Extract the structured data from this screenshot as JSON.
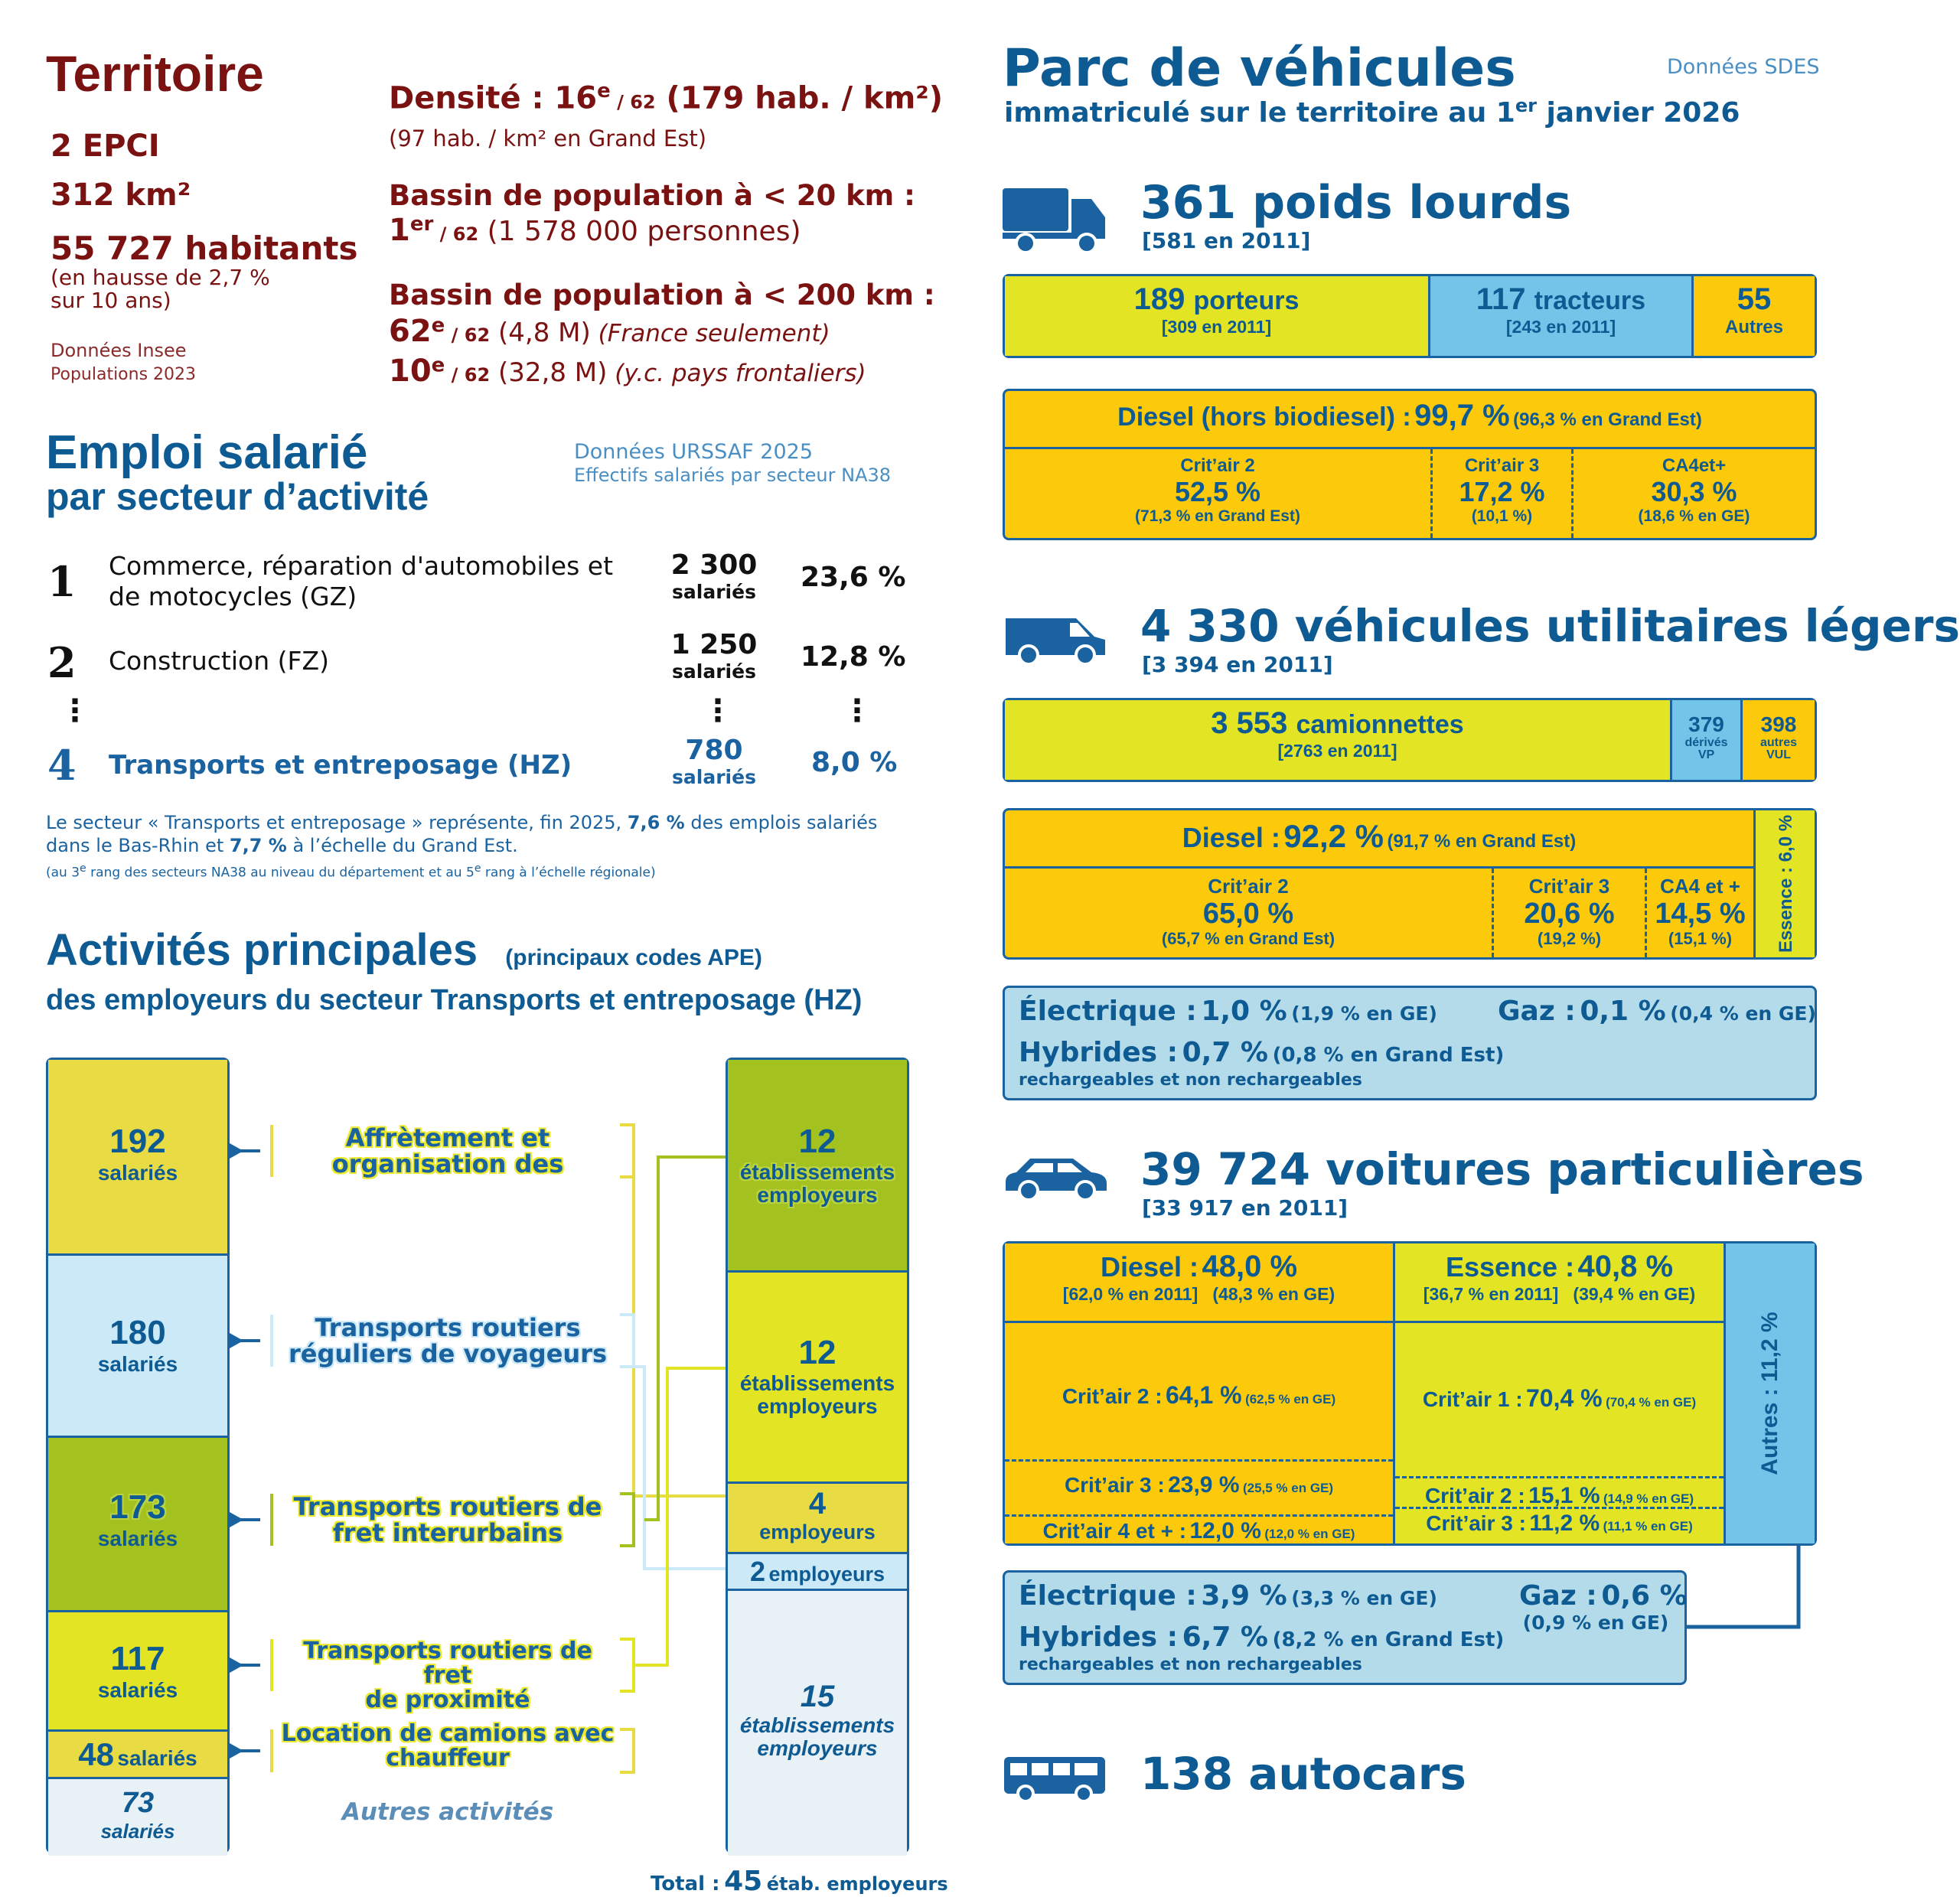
{
  "territoire": {
    "title": "Territoire",
    "epci": "2 EPCI",
    "surface": "312 km²",
    "habitants": "55 727 habitants",
    "hausse_1": "(en hausse de 2,7 %",
    "hausse_2": "sur 10 ans)",
    "source_1": "Données Insee",
    "source_2": "Populations 2023",
    "densite_label": "Densité : 16",
    "densite_sup": "e",
    "densite_rank": " / 62",
    "densite_val": " (179 hab. / km²)",
    "densite_ge": "(97 hab. / km² en Grand Est)",
    "bassin20_title": "Bassin de population à < 20 km :",
    "bassin20_rank": "1",
    "bassin20_sup": "er",
    "bassin20_of": " / 62",
    "bassin20_val": " (1 578 000 personnes)",
    "bassin200_title": "Bassin de population à < 200 km :",
    "bassin200_r1": "62",
    "bassin200_r1_sup": "e",
    "bassin200_r1_of": " / 62",
    "bassin200_r1_val": " (4,8 M)",
    "bassin200_r1_note": " (France seulement)",
    "bassin200_r2": "10",
    "bassin200_r2_sup": "e",
    "bassin200_r2_of": " / 62",
    "bassin200_r2_val": " (32,8 M)",
    "bassin200_r2_note": " (y.c. pays frontaliers)"
  },
  "emploi": {
    "title": "Emploi salarié",
    "subtitle": "par secteur d’activité",
    "source_1": "Données URSSAF 2025",
    "source_2": "Effectifs salariés par secteur NA38",
    "rows": [
      {
        "rank": "1",
        "label_1": "Commerce, réparation d'automobiles et",
        "label_2": "de motocycles (GZ)",
        "count": "2 300",
        "unit": "salariés",
        "pct": "23,6 %"
      },
      {
        "rank": "2",
        "label_1": "Construction (FZ)",
        "label_2": "",
        "count": "1 250",
        "unit": "salariés",
        "pct": "12,8 %"
      },
      {
        "rank": "4",
        "label_1": "Transports et entreposage (HZ)",
        "label_2": "",
        "count": "780",
        "unit": "salariés",
        "pct": "8,0 %"
      }
    ],
    "dots": "⋮",
    "note_a": "Le secteur « Transports et entreposage » représente, fin 2025, ",
    "note_b": "7,6 %",
    "note_c": " des emplois salariés",
    "note_d": "dans le Bas-Rhin et ",
    "note_e": "7,7 %",
    "note_f": " à l’échelle du Grand Est.",
    "note_small_1": "(au 3",
    "note_small_sup1": "e",
    "note_small_2": " rang des secteurs NA38 au niveau du département et au 5",
    "note_small_sup2": "e",
    "note_small_3": " rang à l’échelle régionale)"
  },
  "activites": {
    "title": "Activités principales",
    "title_note": "(principaux codes APE)",
    "subtitle": "des employeurs du secteur Transports et entreposage (HZ)",
    "left": [
      {
        "n": "192",
        "u": "salariés",
        "color": "#e8db44"
      },
      {
        "n": "180",
        "u": "salariés",
        "color": "#cbe9f7"
      },
      {
        "n": "173",
        "u": "salariés",
        "color": "#a4c21f"
      },
      {
        "n": "117",
        "u": "salariés",
        "color": "#e2e424"
      },
      {
        "n": "48",
        "u": "salariés",
        "color": "#e8db44"
      },
      {
        "n": "73",
        "u": "salariés",
        "color": "#e8f1f6"
      }
    ],
    "labels": [
      {
        "l1": "Affrètement et",
        "l2": "organisation des"
      },
      {
        "l1": "Transports routiers",
        "l2": "réguliers de voyageurs"
      },
      {
        "l1": "Transports routiers de",
        "l2": "fret interurbains"
      },
      {
        "l1": "Transports routiers de fret",
        "l2": "de proximité"
      },
      {
        "l1": "Location de camions avec",
        "l2": "chauffeur"
      },
      {
        "l1": "Autres activités",
        "l2": ""
      }
    ],
    "right": [
      {
        "n": "12",
        "u1": "établissements",
        "u2": "employeurs",
        "color": "#a4c21f"
      },
      {
        "n": "12",
        "u1": "établissements",
        "u2": "employeurs",
        "color": "#e2e424"
      },
      {
        "n": "4",
        "u1": "employeurs",
        "u2": "",
        "color": "#e8db44"
      },
      {
        "n": "2",
        "u1": "employeurs",
        "u2": "",
        "color": "#cbe9f7"
      },
      {
        "n": "15",
        "u1": "établissements",
        "u2": "employeurs",
        "color": "#e8f1f6"
      }
    ],
    "total_label": "Total :",
    "total_n": "45",
    "total_u": "étab. employeurs"
  },
  "parc": {
    "title": "Parc de véhicules",
    "subtitle_a": "immatriculé sur le territoire au 1",
    "subtitle_sup": "er",
    "subtitle_b": " janvier 2026",
    "source": "Données SDES",
    "pl": {
      "title": "361 poids lourds",
      "ref": "[581 en 2011]",
      "porteurs_n": "189",
      "porteurs_l": "porteurs",
      "porteurs_ref": "[309 en 2011]",
      "tracteurs_n": "117",
      "tracteurs_l": "tracteurs",
      "tracteurs_ref": "[243 en 2011]",
      "autres_n": "55",
      "autres_l": "Autres",
      "diesel_a": "Diesel (hors biodiesel) :",
      "diesel_b": "99,7 %",
      "diesel_c": "(96,3 % en Grand Est)",
      "c2_l": "Crit’air 2",
      "c2_v": "52,5 %",
      "c2_r": "(71,3 % en Grand Est)",
      "c3_l": "Crit’air 3",
      "c3_v": "17,2 %",
      "c3_r": "(10,1 %)",
      "c4_l": "CA4et+",
      "c4_v": "30,3 %",
      "c4_r": "(18,6 % en GE)"
    },
    "vul": {
      "title": "4 330 véhicules utilitaires légers",
      "ref": "[3 394 en 2011]",
      "cam_n": "3 553",
      "cam_l": "camionnettes",
      "cam_ref": "[2763 en 2011]",
      "vp_n": "379",
      "vp_l1": "dérivés",
      "vp_l2": "VP",
      "vul_n": "398",
      "vul_l1": "autres",
      "vul_l2": "VUL",
      "diesel_a": "Diesel :",
      "diesel_b": "92,2 %",
      "diesel_c": "(91,7 % en Grand Est)",
      "essence": "Essence : 6,0 %",
      "c2_l": "Crit’air 2",
      "c2_v": "65,0 %",
      "c2_r": "(65,7 % en Grand Est)",
      "c3_l": "Crit’air 3",
      "c3_v": "20,6 %",
      "c3_r": "(19,2 %)",
      "c4_l": "CA4 et +",
      "c4_v": "14,5 %",
      "c4_r": "(15,1 %)",
      "elec_a": "Électrique :",
      "elec_b": "1,0 %",
      "elec_c": "(1,9 % en GE)",
      "gaz_a": "Gaz :",
      "gaz_b": "0,1 %",
      "gaz_c": "(0,4 % en GE)",
      "hyb_a": "Hybrides :",
      "hyb_b": "0,7 %",
      "hyb_c": "(0,8 % en Grand Est)",
      "hyb_d": "rechargeables et non rechargeables"
    },
    "vp": {
      "title": "39 724 voitures particulières",
      "ref": "[33 917 en 2011]",
      "diesel_a": "Diesel :",
      "diesel_b": "48,0 %",
      "diesel_r": "[62,0 % en 2011]   (48,3 % en GE)",
      "ess_a": "Essence :",
      "ess_b": "40,8 %",
      "ess_r": "[36,7 % en 2011]   (39,4 % en GE)",
      "autres": "Autres : 11,2 %",
      "dc2_a": "Crit’air 2 :",
      "dc2_b": "64,1 %",
      "dc2_c": "(62,5 % en GE)",
      "dc3_a": "Crit’air 3 :",
      "dc3_b": "23,9 %",
      "dc3_c": "(25,5 % en GE)",
      "dc4_a": "Crit’air 4 et + :",
      "dc4_b": "12,0 %",
      "dc4_c": "(12,0 % en GE)",
      "ec1_a": "Crit’air 1 :",
      "ec1_b": "70,4 %",
      "ec1_c": "(70,4 % en GE)",
      "ec2_a": "Crit’air 2 :",
      "ec2_b": "15,1 %",
      "ec2_c": "(14,9 % en GE)",
      "ec3_a": "Crit’air 3 :",
      "ec3_b": "11,2 %",
      "ec3_c": "(11,1 % en GE)",
      "elec_a": "Électrique :",
      "elec_b": "3,9 %",
      "elec_c": "(3,3 % en GE)",
      "gaz_a": "Gaz :",
      "gaz_b": "0,6 %",
      "gaz_c": "(0,9 % en GE)",
      "hyb_a": "Hybrides :",
      "hyb_b": "6,7 %",
      "hyb_c": "(8,2 % en Grand Est)",
      "hyb_d": "rechargeables et non rechargeables"
    },
    "bus": {
      "title": "138 autocars"
    }
  }
}
